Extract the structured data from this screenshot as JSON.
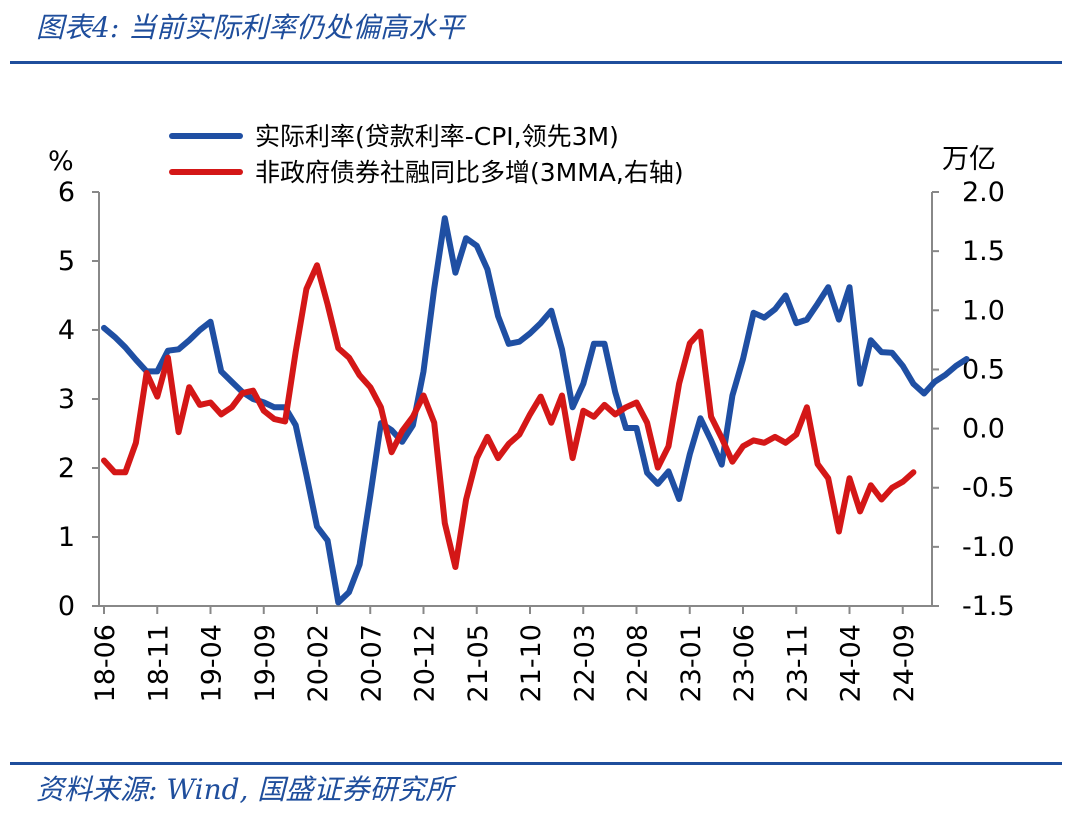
{
  "header": {
    "title": "图表4:  当前实际利率仍处偏高水平"
  },
  "footer": {
    "source": "资料来源:  Wind,  国盛证券研究所"
  },
  "chart_data": {
    "type": "line",
    "left_unit": "%",
    "right_unit": "万亿",
    "ylim_left": [
      0,
      6
    ],
    "ylim_right": [
      -1.5,
      2.0
    ],
    "yticks_left": [
      "0",
      "1",
      "2",
      "3",
      "4",
      "5",
      "6"
    ],
    "yticks_right": [
      "-1.5",
      "-1.0",
      "-0.5",
      "0.0",
      "0.5",
      "1.0",
      "1.5",
      "2.0"
    ],
    "x_tick_labels": [
      "18-06",
      "18-11",
      "19-04",
      "19-09",
      "20-02",
      "20-07",
      "20-12",
      "21-05",
      "21-10",
      "22-03",
      "22-08",
      "23-01",
      "23-06",
      "23-11",
      "24-04",
      "24-09"
    ],
    "x_start": "2018-06",
    "legend_position": "top-center",
    "series": [
      {
        "name": "实际利率(贷款利率-CPI,领先3M)",
        "axis": "left",
        "color": "#1f4fa3",
        "start": "2018-06",
        "values": [
          4.03,
          3.9,
          3.75,
          3.57,
          3.4,
          3.4,
          3.7,
          3.72,
          3.85,
          4.0,
          4.12,
          3.4,
          3.25,
          3.1,
          3.0,
          2.95,
          2.88,
          2.88,
          2.62,
          1.9,
          1.15,
          0.95,
          0.05,
          0.2,
          0.6,
          1.6,
          2.65,
          2.55,
          2.38,
          2.62,
          3.4,
          4.6,
          5.62,
          4.83,
          5.33,
          5.22,
          4.88,
          4.2,
          3.8,
          3.83,
          3.95,
          4.1,
          4.28,
          3.72,
          2.88,
          3.22,
          3.8,
          3.8,
          3.1,
          2.58,
          2.58,
          1.93,
          1.77,
          1.95,
          1.55,
          2.2,
          2.72,
          2.4,
          2.05,
          3.05,
          3.58,
          4.25,
          4.18,
          4.3,
          4.5,
          4.1,
          4.15,
          4.38,
          4.62,
          4.15,
          4.62,
          3.22,
          3.85,
          3.68,
          3.67,
          3.48,
          3.22,
          3.08,
          3.25,
          3.35,
          3.48,
          3.58
        ]
      },
      {
        "name": "非政府债券社融同比多增(3MMA,右轴)",
        "axis": "right",
        "color": "#d41717",
        "start": "2018-06",
        "values": [
          -0.27,
          -0.37,
          -0.37,
          -0.12,
          0.47,
          0.27,
          0.6,
          -0.03,
          0.35,
          0.2,
          0.22,
          0.12,
          0.18,
          0.3,
          0.32,
          0.15,
          0.08,
          0.06,
          0.65,
          1.18,
          1.38,
          1.05,
          0.68,
          0.6,
          0.45,
          0.35,
          0.18,
          -0.2,
          -0.02,
          0.1,
          0.28,
          0.05,
          -0.8,
          -1.17,
          -0.6,
          -0.25,
          -0.07,
          -0.25,
          -0.13,
          -0.05,
          0.12,
          0.27,
          0.05,
          0.28,
          -0.25,
          0.15,
          0.1,
          0.2,
          0.12,
          0.18,
          0.22,
          0.05,
          -0.33,
          -0.15,
          0.38,
          0.72,
          0.82,
          0.1,
          -0.08,
          -0.28,
          -0.15,
          -0.1,
          -0.12,
          -0.07,
          -0.12,
          -0.05,
          0.18,
          -0.3,
          -0.42,
          -0.87,
          -0.42,
          -0.7,
          -0.48,
          -0.6,
          -0.5,
          -0.45,
          -0.37
        ]
      }
    ]
  }
}
